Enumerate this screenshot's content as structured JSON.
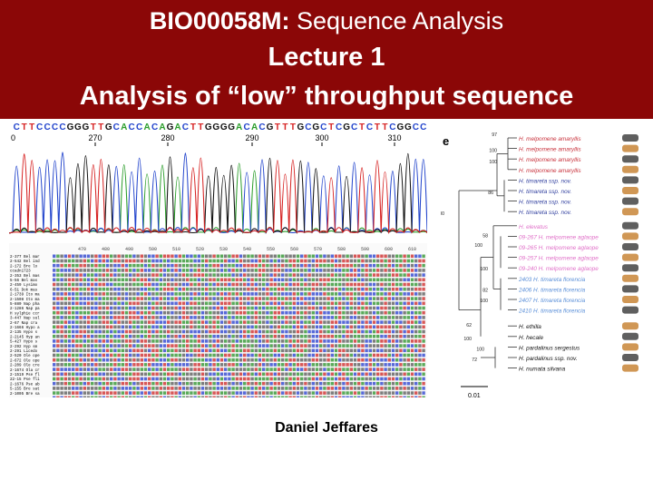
{
  "header": {
    "course_code": "BIO00058M:",
    "course_title": "Sequence Analysis",
    "lecture": "Lecture 1",
    "subtitle": "Analysis of “low” throughput sequence",
    "background_color": "#8b0707"
  },
  "chromatogram": {
    "sequence": "C T T C C C C G G G T T G C A C C A C A G A C T T G G G G A C A C G T T T G C G C T C G C T C T T C G G C C",
    "positions": [
      "270",
      "280",
      "290",
      "300",
      "310"
    ],
    "left_marker": "0",
    "base_colors": {
      "A": "#2a9d2a",
      "C": "#2244cc",
      "G": "#111111",
      "T": "#d62222"
    }
  },
  "alignment": {
    "columns": [
      "470",
      "480",
      "490",
      "500",
      "510",
      "520",
      "530",
      "540",
      "550",
      "560",
      "570",
      "580",
      "590",
      "600",
      "610"
    ],
    "rows": [
      "2-377 Bel mar",
      "2-542 Bel ind",
      "2-172 Bre lo",
      "ccadn1723",
      "2-353 Bel mas",
      "5-56 Bel mas",
      "2-459 Lysimo",
      "6-51 Dok mas",
      "2-1739 Ito ma",
      "2-1508 Ito ma",
      "5-880 Nap pha",
      "2-1286 Nap pa",
      "H sylphie ccr",
      "3-447 Nap sul",
      "2-67 Nap cra",
      "2-1666 Hypo a",
      "2-135 Hypo s",
      "2-2145 Hyp an",
      "5-427 Hypo s",
      "2-292 Hyp sm",
      "2-291 Licedo",
      "2-520 Ole ope",
      "2-672 Ole ope",
      "2-209 Ole cre",
      "2-1674 Ola cr",
      "2-1519 Pse fl",
      "22-15 Pse fli",
      "2-1676 Pse ab",
      "5-155 Bre sat",
      "2-1005 Bre sa",
      "2-1000 Bre sa"
    ]
  },
  "tree": {
    "panel_label": "e",
    "scale_label": "0.01",
    "bootstrap": [
      "97",
      "100",
      "100",
      "86",
      "100",
      "100",
      "58",
      "100",
      "82",
      "100",
      "100",
      "72",
      "62",
      "100"
    ],
    "taxa": [
      {
        "label": "H. melpomene amaryllis",
        "color": "#c8323c"
      },
      {
        "label": "H. melpomene amaryllis",
        "color": "#c8323c"
      },
      {
        "label": "H. melpomene amaryllis",
        "color": "#c8323c"
      },
      {
        "label": "H. melpomene amaryllis",
        "color": "#c8323c"
      },
      {
        "label": "H. timareta ssp. nov.",
        "color": "#2f3e9e"
      },
      {
        "label": "H. timareta ssp. nov.",
        "color": "#2f3e9e"
      },
      {
        "label": "H. timareta ssp. nov.",
        "color": "#2f3e9e"
      },
      {
        "label": "H. timareta ssp. nov.",
        "color": "#2f3e9e"
      },
      {
        "label": "H. elevatus",
        "color": "#e070c8"
      },
      {
        "label": "09-267 H. melpomene aglaope",
        "color": "#e070c8"
      },
      {
        "label": "09-265 H. melpomene aglaope",
        "color": "#e070c8"
      },
      {
        "label": "09-257 H. melpomene aglaope",
        "color": "#e070c8"
      },
      {
        "label": "09-240 H. melpomene aglaope",
        "color": "#e070c8"
      },
      {
        "label": "2403 H. timareta florencia",
        "color": "#5a8fd8"
      },
      {
        "label": "2406 H. timareta florencia",
        "color": "#5a8fd8"
      },
      {
        "label": "2407 H. timareta florencia",
        "color": "#5a8fd8"
      },
      {
        "label": "2410 H. timareta florencia",
        "color": "#5a8fd8"
      },
      {
        "label": "H. ethilla",
        "color": "#111111"
      },
      {
        "label": "H. hecale",
        "color": "#111111"
      },
      {
        "label": "H. pardalinus sergestus",
        "color": "#111111"
      },
      {
        "label": "H. pardalinus ssp. nov.",
        "color": "#111111"
      },
      {
        "label": "H. numata silvana",
        "color": "#111111"
      }
    ]
  },
  "author": "Daniel Jeffares"
}
